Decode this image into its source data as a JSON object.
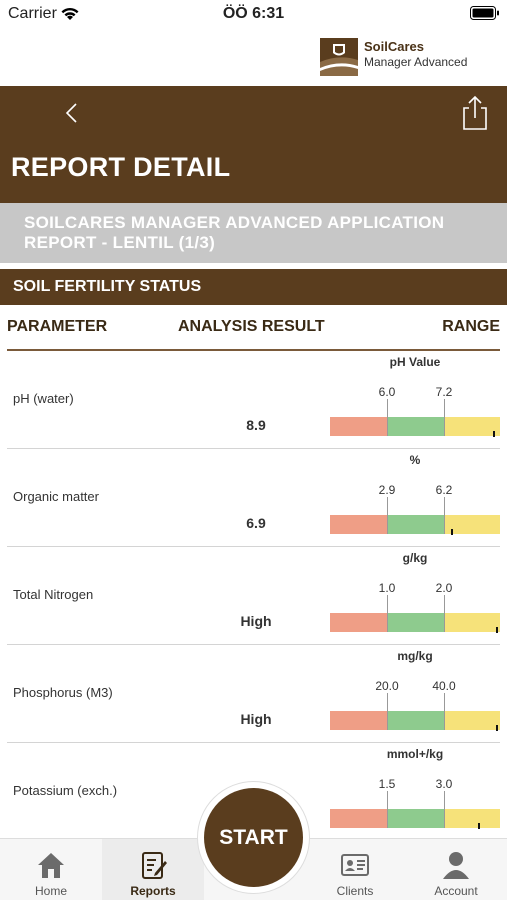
{
  "status_bar": {
    "carrier": "Carrier",
    "time": "ÖÖ 6:31",
    "wifi_icon": "wifi-icon",
    "battery_icon": "battery-icon"
  },
  "brand": {
    "name": "SoilCares",
    "subtitle": "Manager Advanced"
  },
  "header": {
    "title": "REPORT DETAIL",
    "back_icon": "chevron-left-icon",
    "share_icon": "share-icon"
  },
  "report": {
    "title": "SOILCARES MANAGER ADVANCED APPLICATION REPORT - LENTIL (1/3)"
  },
  "section": {
    "title": "SOIL FERTILITY STATUS"
  },
  "table": {
    "columns": {
      "parameter": "PARAMETER",
      "result": "ANALYSIS RESULT",
      "range": "RANGE"
    },
    "rows": [
      {
        "unit": "pH Value",
        "name": "pH (water)",
        "value": "8.9",
        "low": "6.0",
        "high": "7.2",
        "marker_fraction": 0.97
      },
      {
        "unit": "%",
        "name": "Organic matter",
        "value": "6.9",
        "low": "2.9",
        "high": "6.2",
        "marker_fraction": 0.72
      },
      {
        "unit": "g/kg",
        "name": "Total Nitrogen",
        "value": "High",
        "low": "1.0",
        "high": "2.0",
        "marker_fraction": 0.99
      },
      {
        "unit": "mg/kg",
        "name": "Phosphorus (M3)",
        "value": "High",
        "low": "20.0",
        "high": "40.0",
        "marker_fraction": 0.99
      },
      {
        "unit": "mmol+/kg",
        "name": "Potassium (exch.)",
        "value": "",
        "low": "1.5",
        "high": "3.0",
        "marker_fraction": 0.88
      }
    ]
  },
  "colors": {
    "brand_brown": "#5a3d1e",
    "low": "#ef9e86",
    "optimal": "#8ecb8e",
    "high": "#f6e27a",
    "banner_gray": "#c7c7c7"
  },
  "tabs": [
    {
      "label": "Home",
      "icon": "home-icon",
      "active": false
    },
    {
      "label": "Reports",
      "icon": "reports-icon",
      "active": true
    },
    {
      "label": "Clients",
      "icon": "clients-icon",
      "active": false
    },
    {
      "label": "Account",
      "icon": "account-icon",
      "active": false
    }
  ],
  "start_button": {
    "label": "START"
  }
}
